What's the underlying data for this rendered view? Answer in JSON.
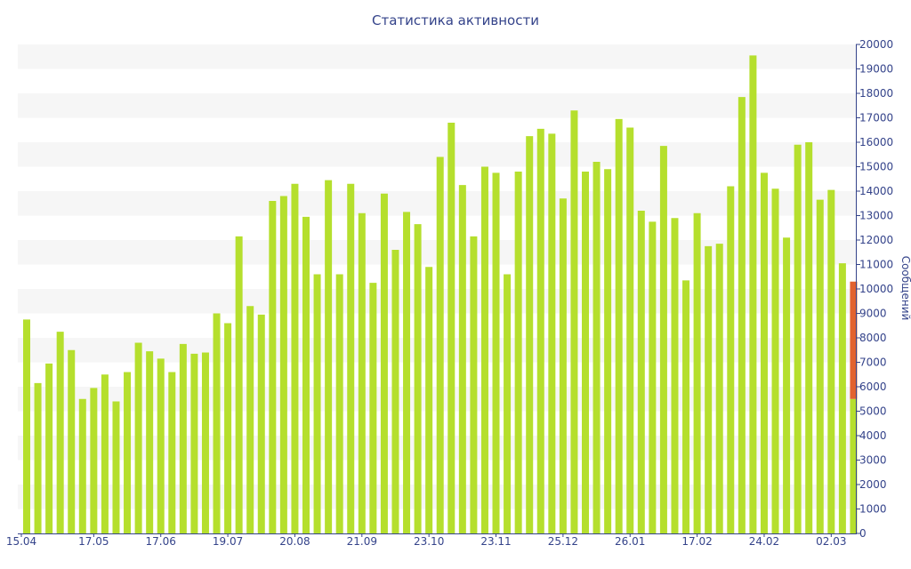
{
  "chart_data": {
    "type": "bar",
    "title": "Статистика активности",
    "ylabel": "Сообщений",
    "xlabel": "",
    "ylim": [
      0,
      20000
    ],
    "y_axis_side": "right",
    "yticks": [
      0,
      1000,
      2000,
      3000,
      4000,
      5000,
      6000,
      7000,
      8000,
      9000,
      10000,
      11000,
      12000,
      13000,
      14000,
      15000,
      16000,
      17000,
      18000,
      19000,
      20000
    ],
    "x_tick_labels": [
      {
        "index": 0,
        "label": "15.04"
      },
      {
        "index": 6,
        "label": "17.05"
      },
      {
        "index": 12,
        "label": "17.06"
      },
      {
        "index": 18,
        "label": "19.07"
      },
      {
        "index": 24,
        "label": "20.08"
      },
      {
        "index": 30,
        "label": "21.09"
      },
      {
        "index": 36,
        "label": "23.10"
      },
      {
        "index": 42,
        "label": "23.11"
      },
      {
        "index": 48,
        "label": "25.12"
      },
      {
        "index": 54,
        "label": "26.01"
      },
      {
        "index": 60,
        "label": "17.02"
      },
      {
        "index": 66,
        "label": "24.02"
      },
      {
        "index": 72,
        "label": "02.03"
      }
    ],
    "colors": {
      "bar": "#b5df2d",
      "current_bar": "#e2622e",
      "axis": "#34438a",
      "band": "#f6f6f6"
    },
    "grid": "alternating horizontal bands",
    "values": [
      8750,
      6150,
      6950,
      8250,
      7500,
      5500,
      5950,
      6500,
      5400,
      6600,
      7800,
      7450,
      7150,
      6600,
      7750,
      7350,
      7400,
      9000,
      8600,
      12150,
      9300,
      8950,
      13600,
      13800,
      14300,
      12950,
      10600,
      14450,
      10600,
      14300,
      13100,
      10250,
      13900,
      11600,
      13150,
      12650,
      10900,
      15400,
      16800,
      14250,
      12150,
      15000,
      14750,
      10600,
      14800,
      16250,
      16550,
      16350,
      13700,
      17300,
      14800,
      15200,
      14900,
      16950,
      16600,
      13200,
      12750,
      15850,
      12900,
      10350,
      13100,
      11750,
      11850,
      14200,
      17850,
      19550,
      14750,
      14100,
      12100,
      15900,
      16000,
      13650,
      14050,
      11050
    ],
    "current_bar": {
      "base": 5500,
      "top": 10300
    }
  }
}
